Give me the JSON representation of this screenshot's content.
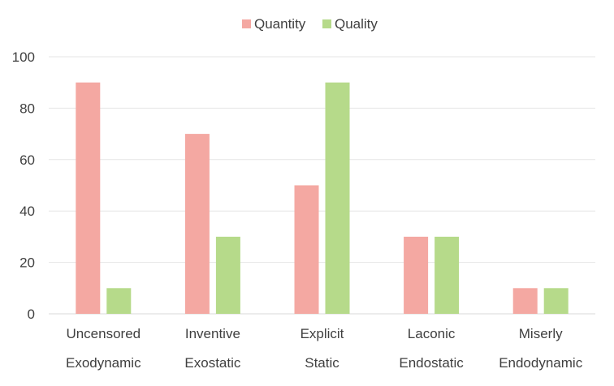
{
  "chart_data": {
    "type": "bar",
    "title": "",
    "xlabel": "",
    "ylabel": "",
    "ylim": [
      0,
      100
    ],
    "yticks": [
      0,
      20,
      40,
      60,
      80,
      100
    ],
    "grid": true,
    "legend_position": "top",
    "categories": [
      [
        "Uncensored",
        "Exodynamic"
      ],
      [
        "Inventive",
        "Exostatic"
      ],
      [
        "Explicit",
        "Static"
      ],
      [
        "Laconic",
        "Endostatic"
      ],
      [
        "Miserly",
        "Endodynamic"
      ]
    ],
    "series": [
      {
        "name": "Quantity",
        "color": "#f4a8a2",
        "values": [
          90,
          70,
          50,
          30,
          10
        ]
      },
      {
        "name": "Quality",
        "color": "#b6da8a",
        "values": [
          10,
          30,
          90,
          30,
          10
        ]
      }
    ]
  }
}
